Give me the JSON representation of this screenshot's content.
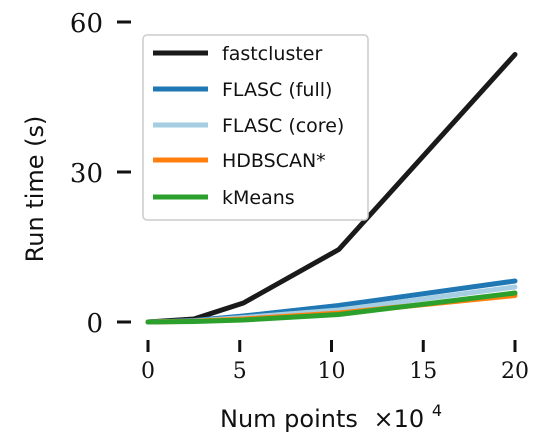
{
  "chart_data": {
    "type": "line",
    "xlabel": "Num points",
    "xlabel_multiplier": "×10",
    "xlabel_exponent": "4",
    "ylabel": "Run time (s)",
    "xlim": [
      -1,
      20.5
    ],
    "ylim": [
      -1,
      62
    ],
    "xticks": [
      0,
      5,
      10,
      15,
      20
    ],
    "yticks": [
      0,
      30,
      60
    ],
    "xtick_labels": [
      "0",
      "5",
      "10",
      "15",
      "20"
    ],
    "ytick_labels": [
      "0",
      "30",
      "60"
    ],
    "grid": false,
    "legend_position": "top-left",
    "series": [
      {
        "name": "fastcluster",
        "color": "#1a1a1a",
        "x": [
          0,
          2.5,
          5.2,
          10.4,
          20
        ],
        "y": [
          0,
          0.6,
          3.8,
          14.5,
          53.5
        ]
      },
      {
        "name": "FLASC (full)",
        "color": "#1f77b4",
        "x": [
          0,
          2.5,
          5.2,
          10.4,
          20
        ],
        "y": [
          0,
          0.3,
          1.2,
          3.3,
          8.2
        ]
      },
      {
        "name": "FLASC (core)",
        "color": "#a6cee3",
        "x": [
          0,
          2.5,
          5.2,
          10.4,
          20
        ],
        "y": [
          0,
          0.2,
          0.9,
          2.4,
          7.0
        ]
      },
      {
        "name": "HDBSCAN*",
        "color": "#ff7f0e",
        "x": [
          0,
          2.5,
          5.2,
          10.4,
          20
        ],
        "y": [
          0,
          0.15,
          0.6,
          1.8,
          5.3
        ]
      },
      {
        "name": "kMeans",
        "color": "#2ca02c",
        "x": [
          0,
          2.5,
          5.2,
          10.4,
          20
        ],
        "y": [
          0,
          0.1,
          0.4,
          1.5,
          5.8
        ]
      }
    ]
  }
}
